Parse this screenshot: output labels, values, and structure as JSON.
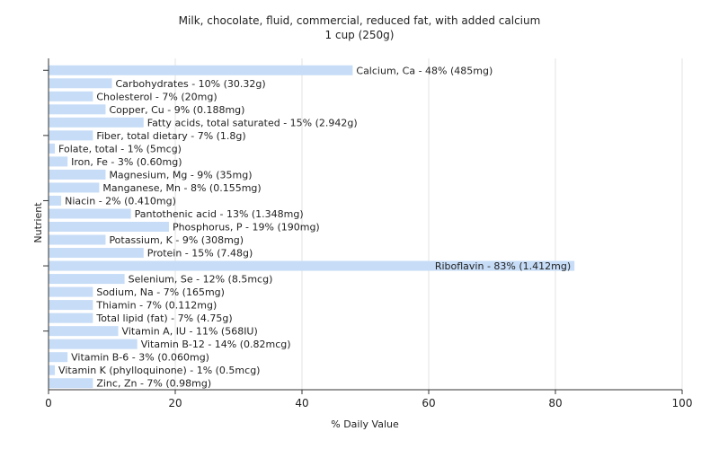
{
  "chart_data": {
    "type": "bar",
    "orientation": "horizontal",
    "title": "Milk, chocolate, fluid, commercial, reduced fat, with added calcium",
    "subtitle": "1 cup (250g)",
    "xlabel": "% Daily Value",
    "ylabel": "Nutrient",
    "xlim": [
      0,
      100
    ],
    "xticks": [
      0,
      20,
      40,
      60,
      80,
      100
    ],
    "grid": true,
    "bar_color": "#c6dcf7",
    "categories": [
      "Calcium, Ca",
      "Carbohydrates",
      "Cholesterol",
      "Copper, Cu",
      "Fatty acids, total saturated",
      "Fiber, total dietary",
      "Folate, total",
      "Iron, Fe",
      "Magnesium, Mg",
      "Manganese, Mn",
      "Niacin",
      "Pantothenic acid",
      "Phosphorus, P",
      "Potassium, K",
      "Protein",
      "Riboflavin",
      "Selenium, Se",
      "Sodium, Na",
      "Thiamin",
      "Total lipid (fat)",
      "Vitamin A, IU",
      "Vitamin B-12",
      "Vitamin B-6",
      "Vitamin K (phylloquinone)",
      "Zinc, Zn"
    ],
    "values": [
      48,
      10,
      7,
      9,
      15,
      7,
      1,
      3,
      9,
      8,
      2,
      13,
      19,
      9,
      15,
      83,
      12,
      7,
      7,
      7,
      11,
      14,
      3,
      1,
      7
    ],
    "labels": [
      "Calcium, Ca - 48% (485mg)",
      "Carbohydrates - 10% (30.32g)",
      "Cholesterol - 7% (20mg)",
      "Copper, Cu - 9% (0.188mg)",
      "Fatty acids, total saturated - 15% (2.942g)",
      "Fiber, total dietary - 7% (1.8g)",
      "Folate, total - 1% (5mcg)",
      "Iron, Fe - 3% (0.60mg)",
      "Magnesium, Mg - 9% (35mg)",
      "Manganese, Mn - 8% (0.155mg)",
      "Niacin - 2% (0.410mg)",
      "Pantothenic acid - 13% (1.348mg)",
      "Phosphorus, P - 19% (190mg)",
      "Potassium, K - 9% (308mg)",
      "Protein - 15% (7.48g)",
      "Riboflavin - 83% (1.412mg)",
      "Selenium, Se - 12% (8.5mcg)",
      "Sodium, Na - 7% (165mg)",
      "Thiamin - 7% (0.112mg)",
      "Total lipid (fat) - 7% (4.75g)",
      "Vitamin A, IU - 11% (568IU)",
      "Vitamin B-12 - 14% (0.82mcg)",
      "Vitamin B-6 - 3% (0.060mg)",
      "Vitamin K (phylloquinone) - 1% (0.5mcg)",
      "Zinc, Zn - 7% (0.98mg)"
    ]
  }
}
